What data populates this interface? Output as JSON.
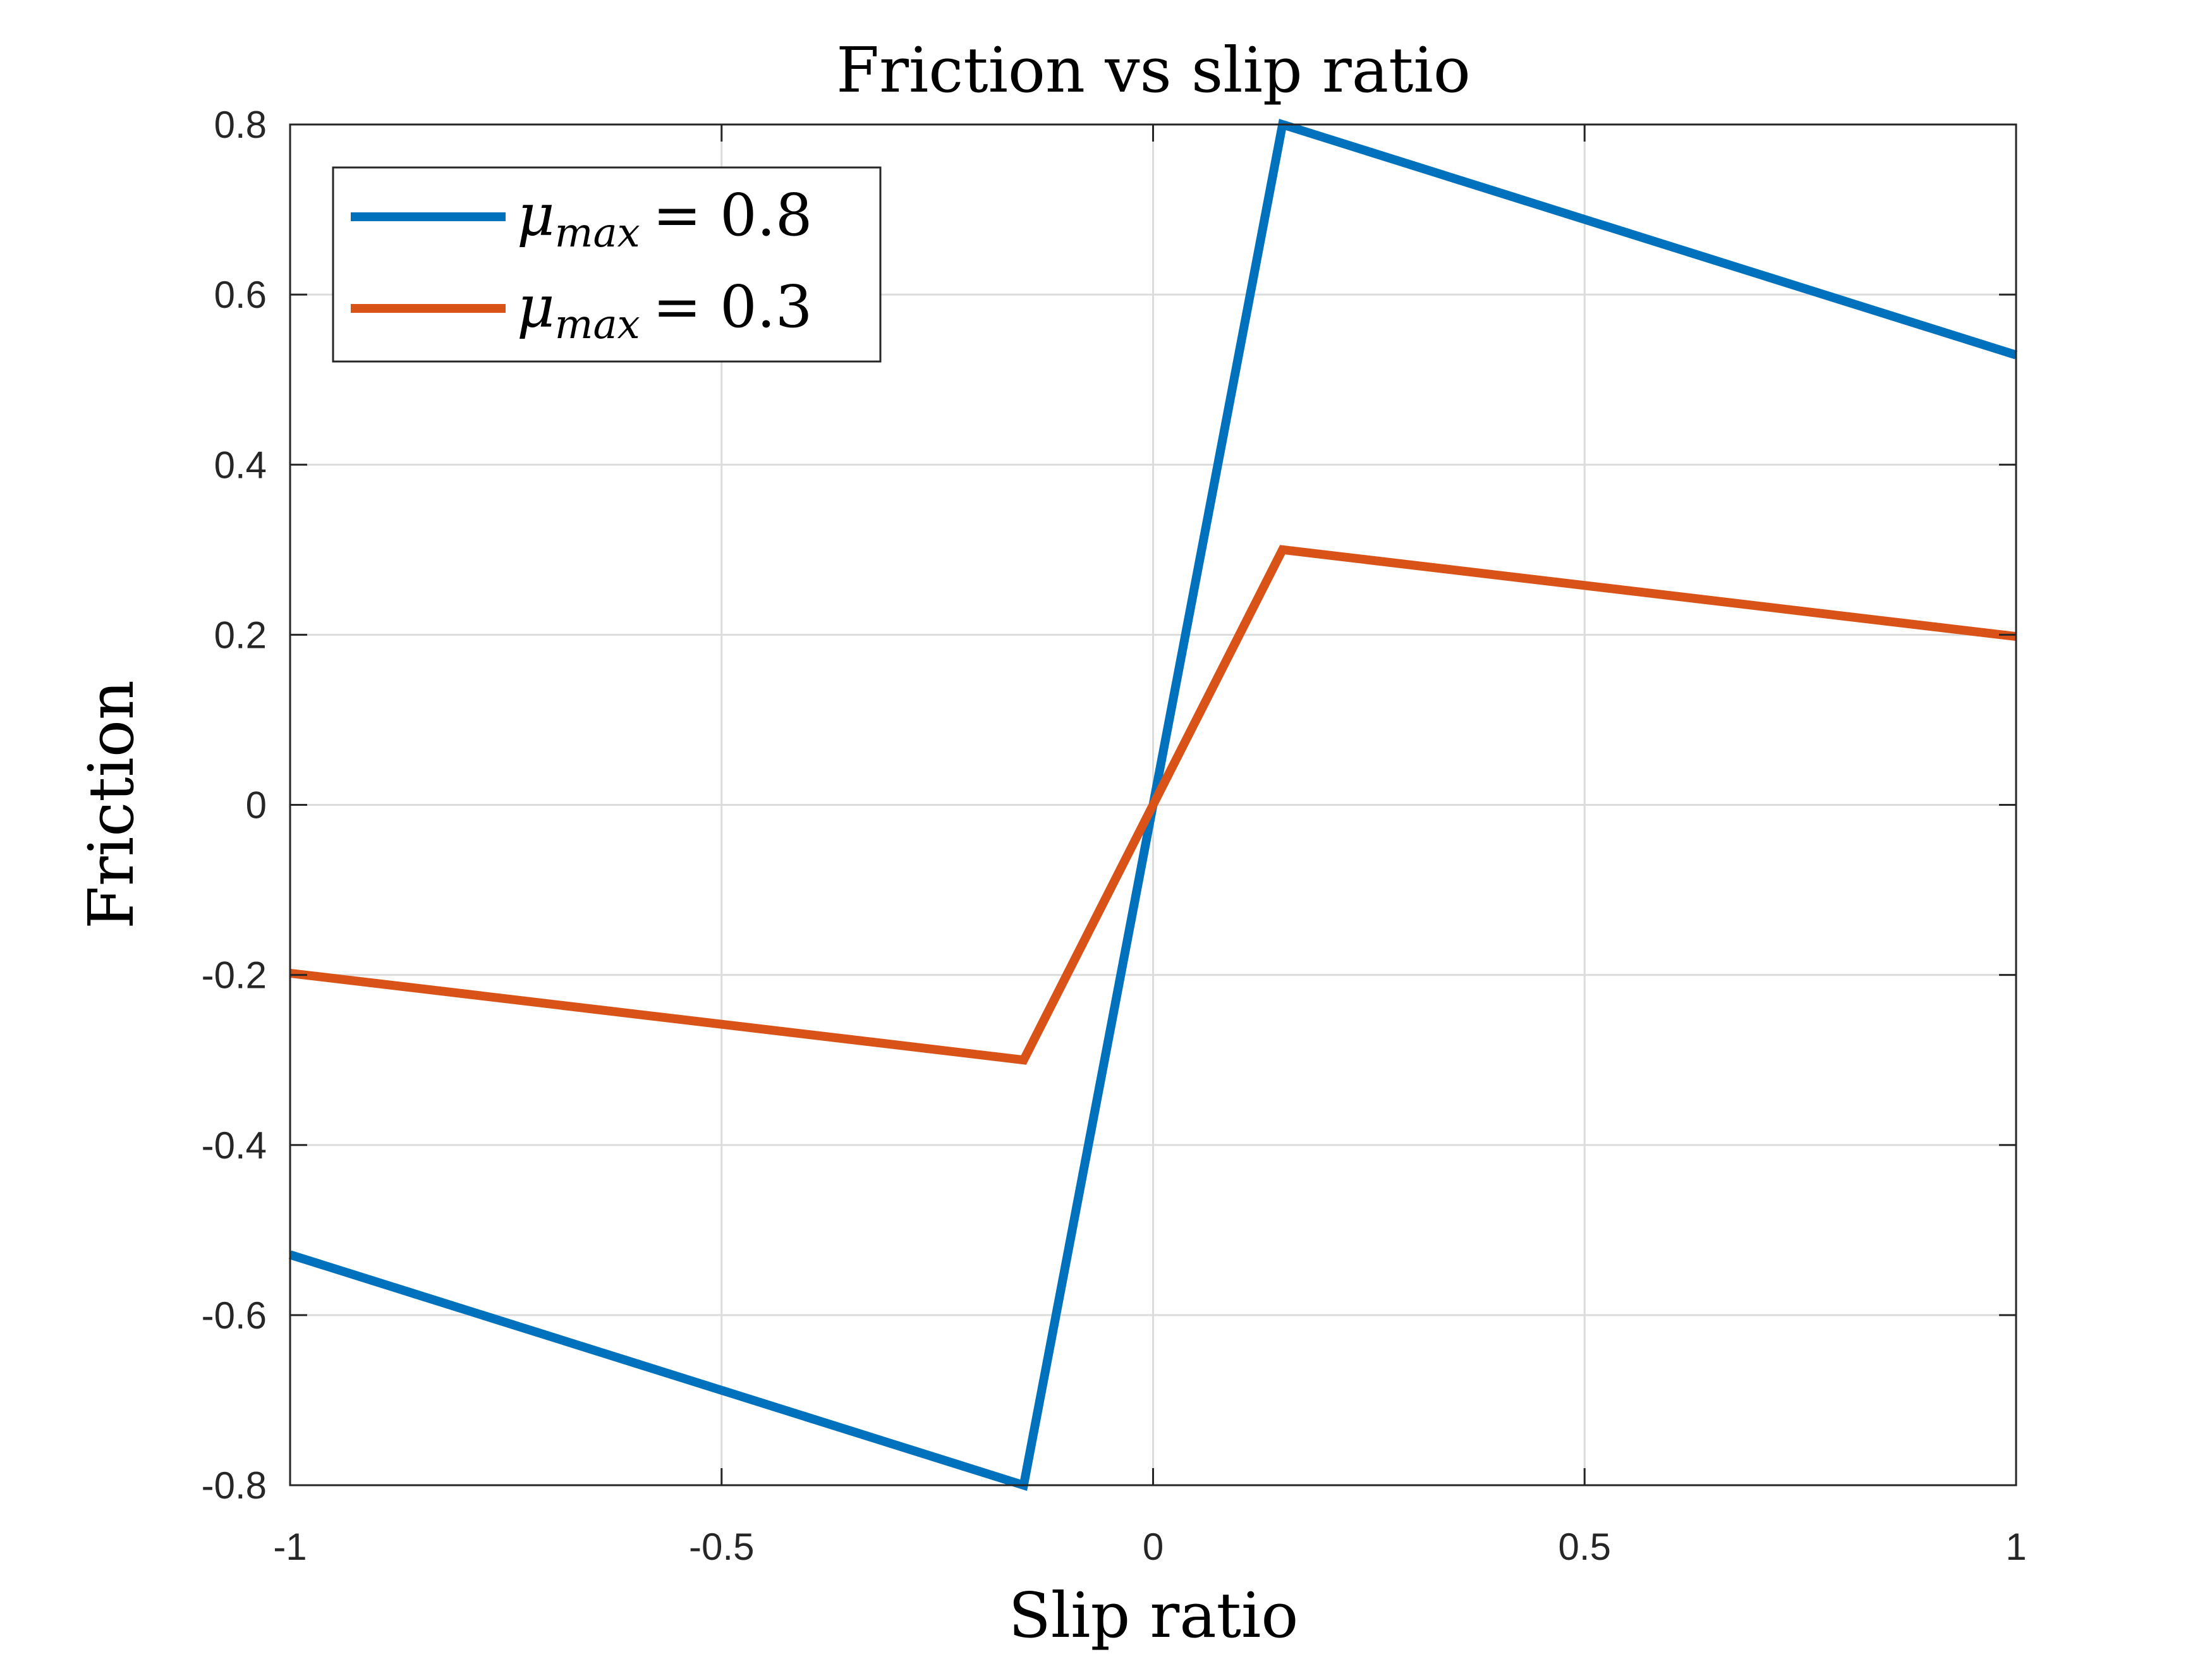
{
  "chart_data": {
    "type": "line",
    "title": "Friction vs slip ratio",
    "xlabel": "Slip ratio",
    "ylabel": "Friction",
    "xlim": [
      -1,
      1
    ],
    "ylim": [
      -0.8,
      0.8
    ],
    "xticks": [
      -1,
      -0.5,
      0,
      0.5,
      1
    ],
    "xtick_labels": [
      "-1",
      "-0.5",
      "0",
      "0.5",
      "1"
    ],
    "yticks": [
      -0.8,
      -0.6,
      -0.4,
      -0.2,
      0,
      0.2,
      0.4,
      0.6,
      0.8
    ],
    "ytick_labels": [
      "-0.8",
      "-0.6",
      "-0.4",
      "-0.2",
      "0",
      "0.2",
      "0.4",
      "0.6",
      "0.8"
    ],
    "grid": true,
    "legend_position": "top-left",
    "series": [
      {
        "name": "μmax = 0.8",
        "legend_symbol": "μ",
        "legend_subscript": "max",
        "legend_value": "= 0.8",
        "color": "#0072BD",
        "x": [
          -1,
          -0.15,
          0,
          0.15,
          1
        ],
        "y": [
          -0.529,
          -0.8,
          0,
          0.8,
          0.529
        ]
      },
      {
        "name": "μmax = 0.3",
        "legend_symbol": "μ",
        "legend_subscript": "max",
        "legend_value": "= 0.3",
        "color": "#D95319",
        "x": [
          -1,
          -0.15,
          0,
          0.15,
          1
        ],
        "y": [
          -0.198,
          -0.3,
          0,
          0.3,
          0.198
        ]
      }
    ]
  }
}
